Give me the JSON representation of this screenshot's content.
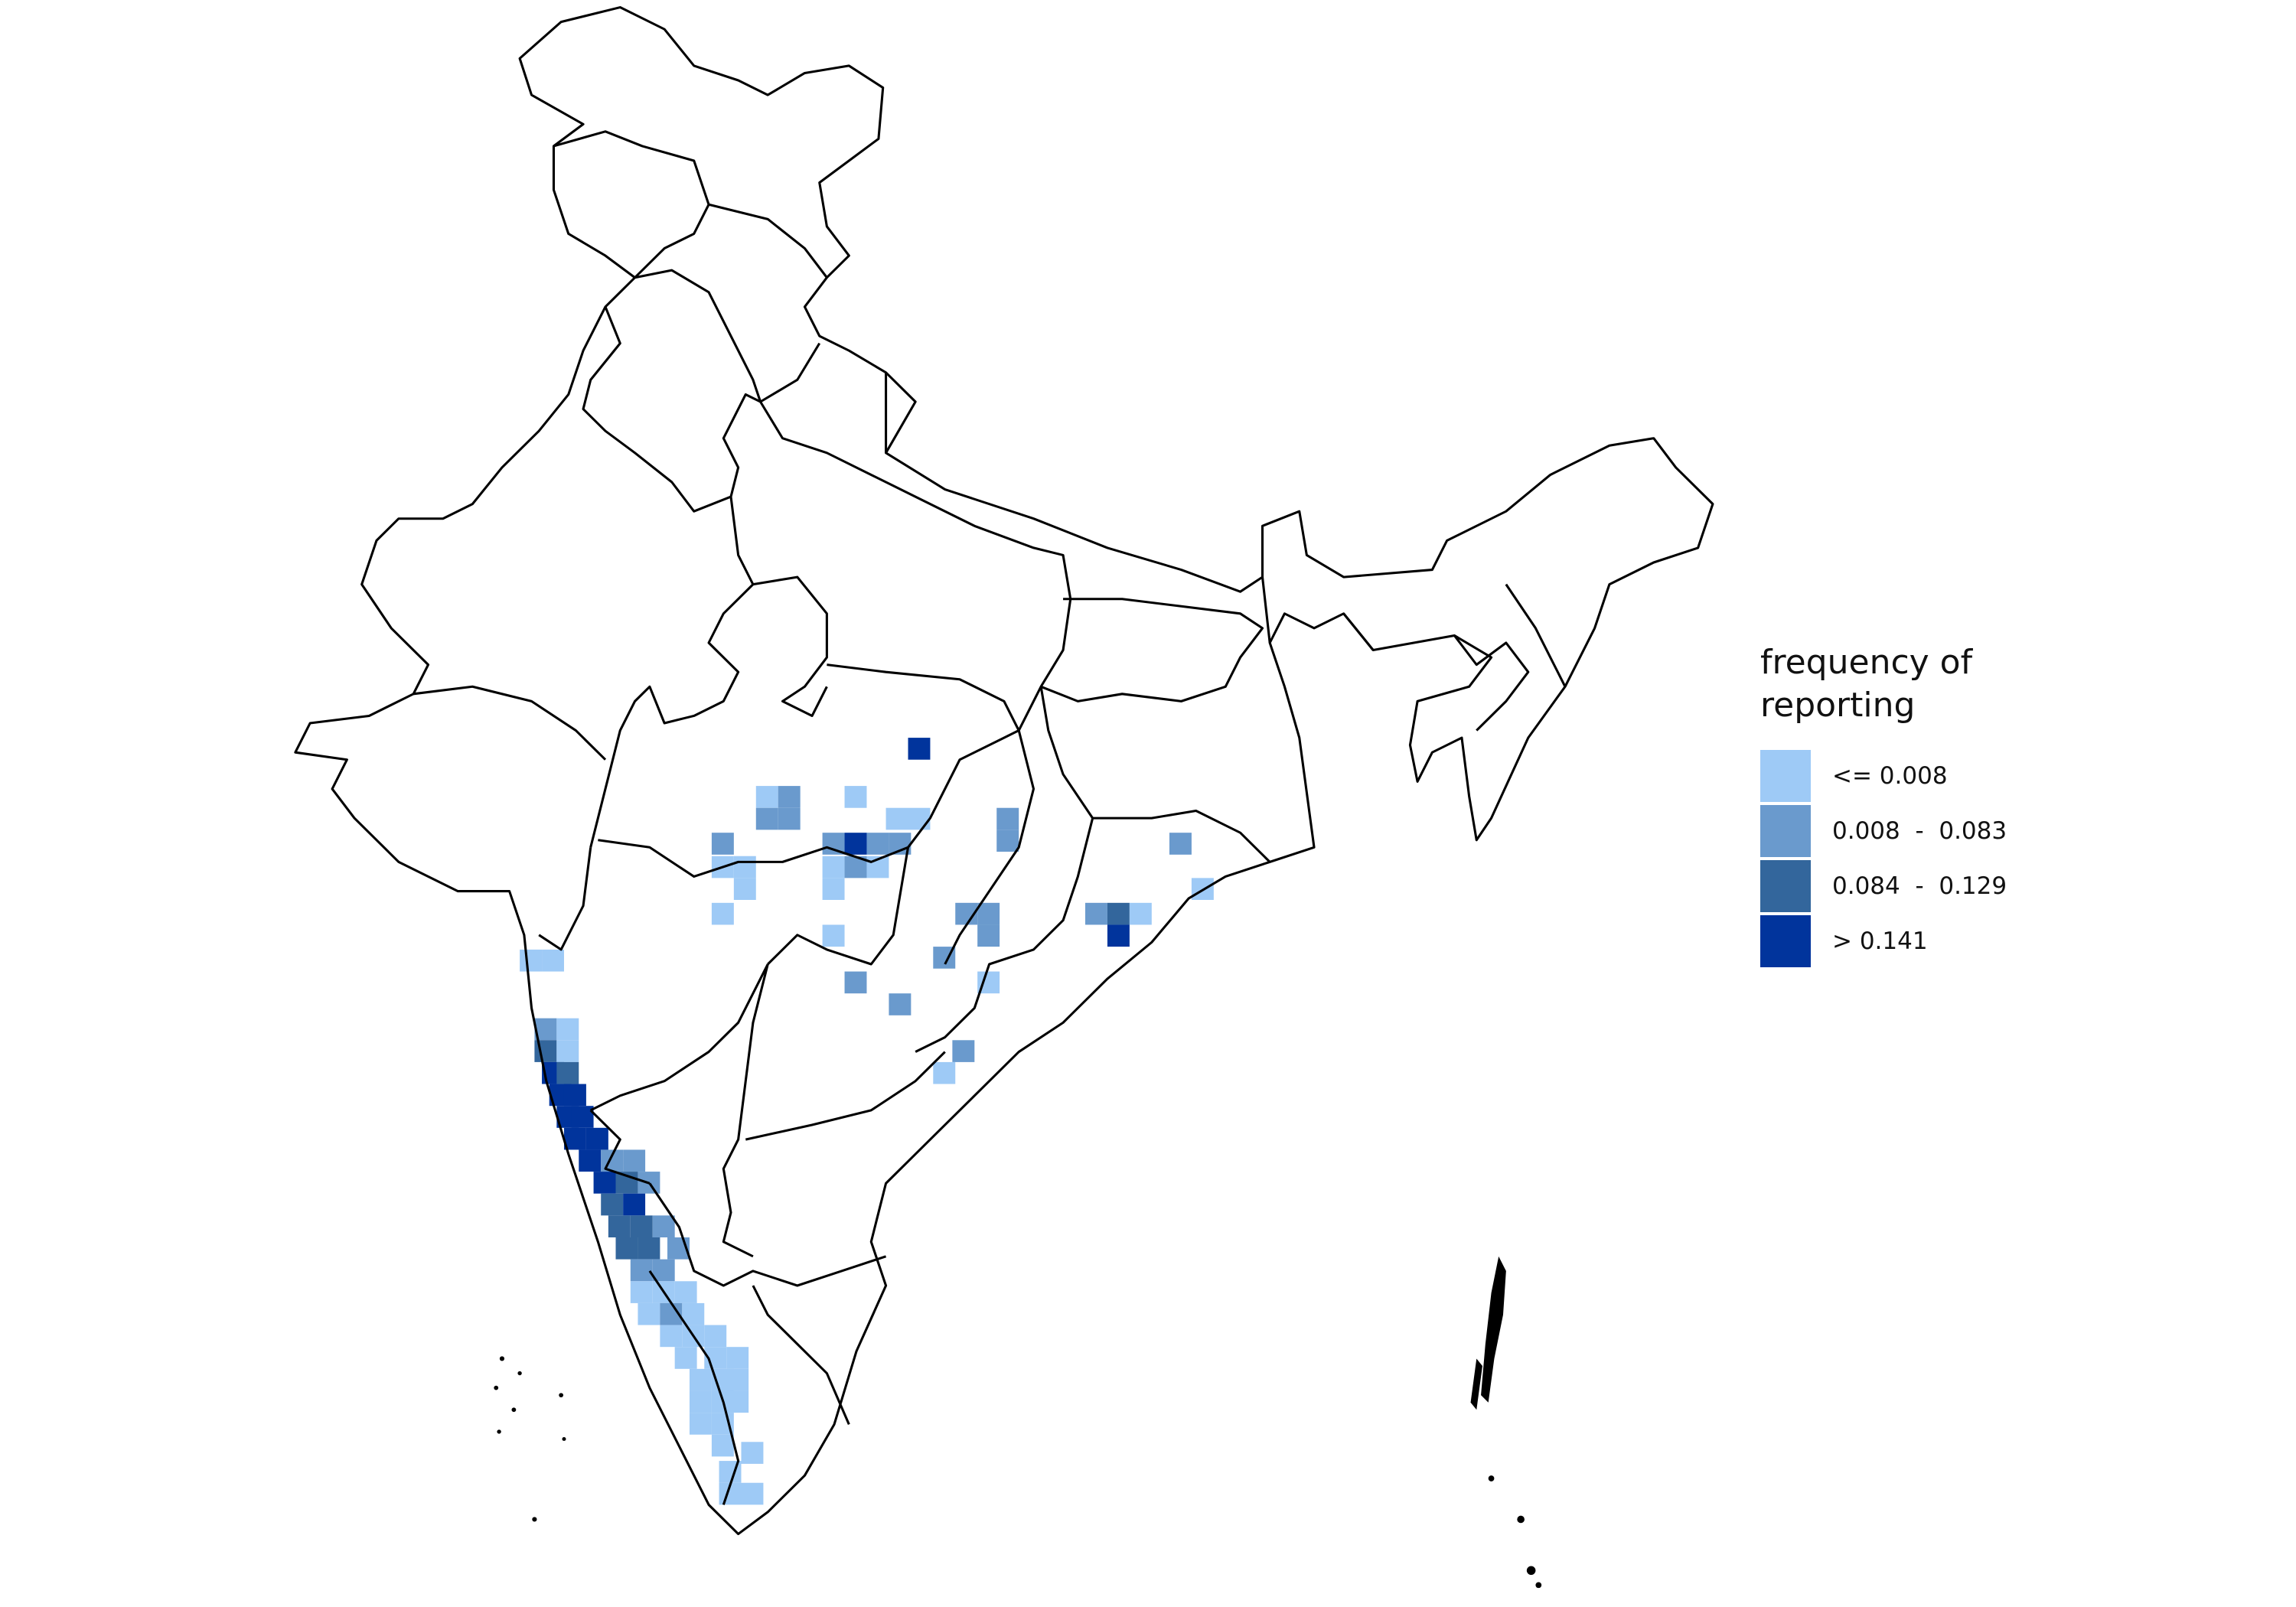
{
  "legend": {
    "title_line1": "frequency of",
    "title_line2": "reporting",
    "classes": [
      {
        "label": "<= 0.008",
        "color": "#9ECAF6"
      },
      {
        "label": "0.008  -  0.083",
        "color": "#6A9ACD"
      },
      {
        "label": "0.084  -  0.129",
        "color": "#33669C"
      },
      {
        "label": "> 0.141",
        "color": "#01349C"
      }
    ]
  },
  "colors": {
    "boundary": "#000000",
    "background": "#ffffff"
  }
}
